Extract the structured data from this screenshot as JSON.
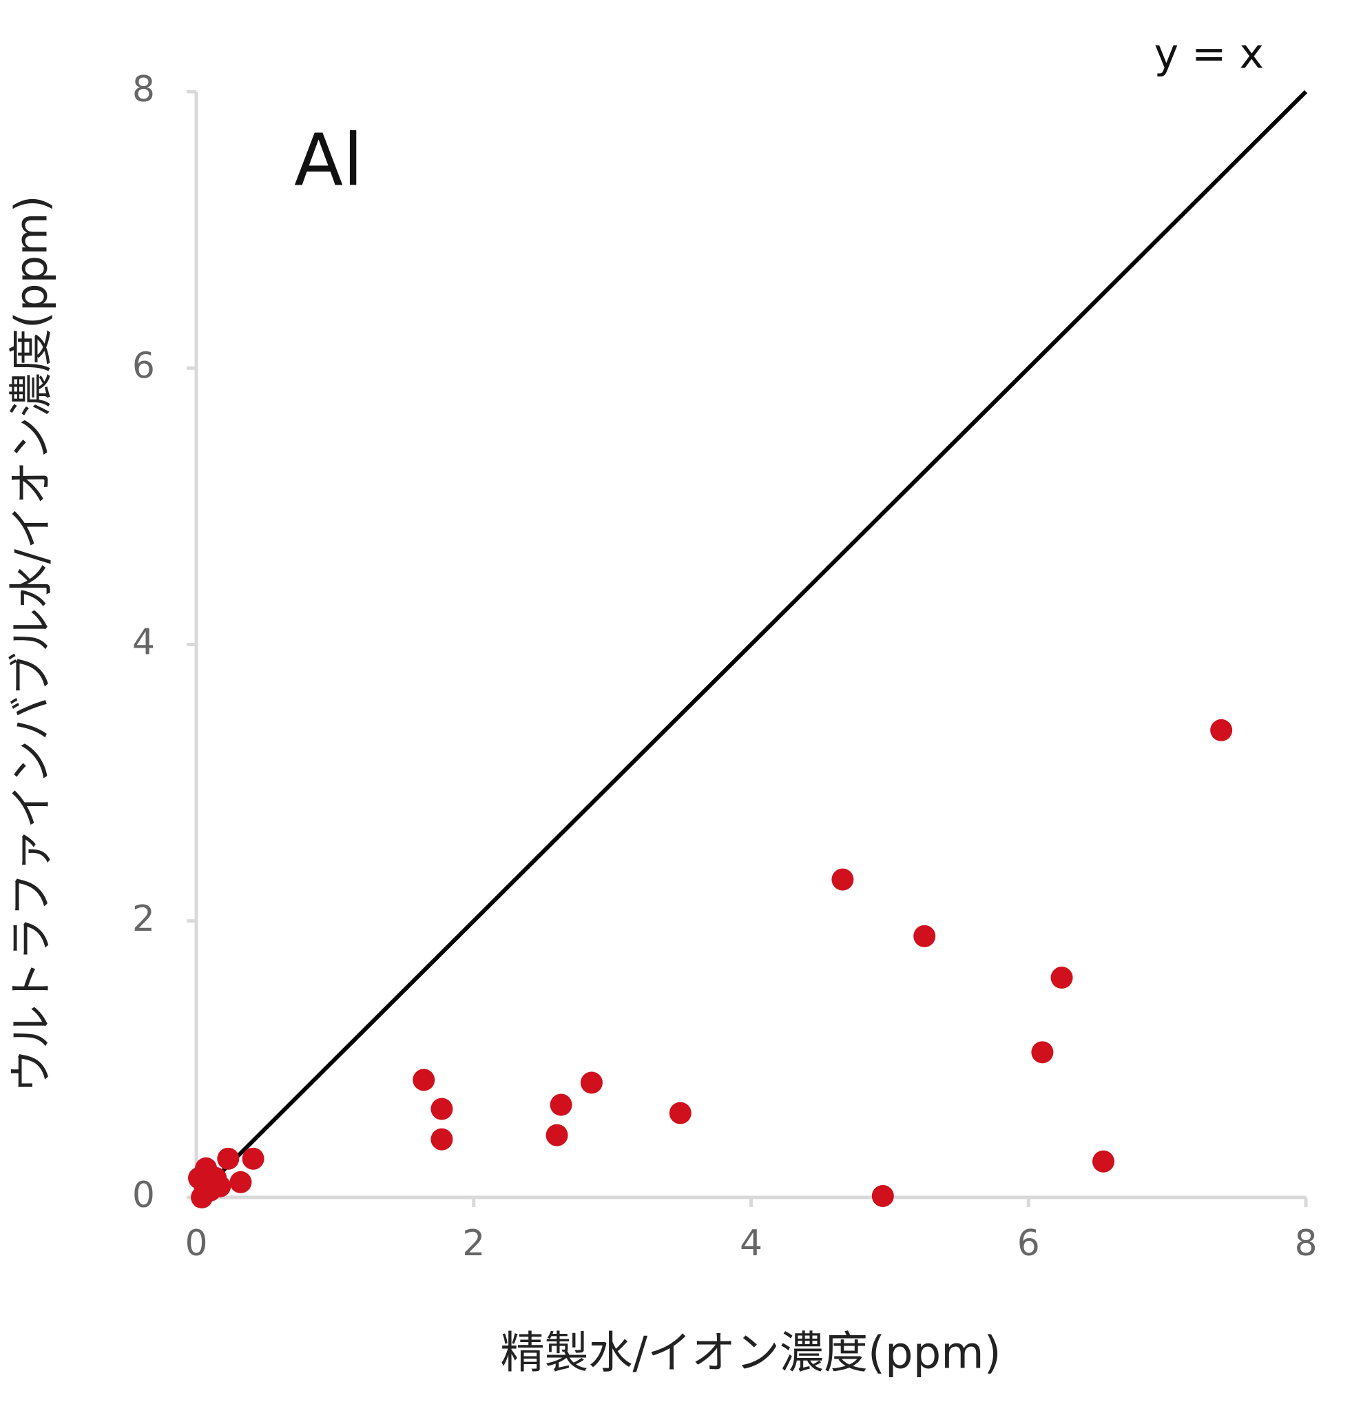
{
  "chart_data": {
    "type": "scatter",
    "annotation": "Al",
    "x_label": "精製水/イオン濃度(ppm)",
    "y_label": "ウルトラファインバブル水/イオン濃度(ppm)",
    "xlim": [
      0,
      8
    ],
    "ylim": [
      0,
      8
    ],
    "xticks": [
      0,
      2,
      4,
      6,
      8
    ],
    "yticks": [
      0,
      2,
      4,
      6,
      8
    ],
    "grid": false,
    "reference_line": {
      "label": "y = x",
      "color": "#000000",
      "x": [
        0,
        8
      ],
      "y": [
        0,
        8
      ]
    },
    "series": [
      {
        "color": "#d0101c",
        "x": [
          7.39,
          4.66,
          5.25,
          6.24,
          6.1,
          6.54,
          4.95,
          1.64,
          1.77,
          1.77,
          2.63,
          2.6,
          2.85,
          3.49,
          0.41,
          0.23,
          0.32,
          0.14,
          0.07,
          0.02,
          0.04,
          0.1,
          0.17,
          0.06
        ],
        "values": [
          3.38,
          2.3,
          1.89,
          1.59,
          1.05,
          0.26,
          0.01,
          0.85,
          0.64,
          0.42,
          0.67,
          0.45,
          0.83,
          0.61,
          0.28,
          0.28,
          0.11,
          0.14,
          0.21,
          0.14,
          0.0,
          0.05,
          0.08,
          0.08
        ]
      }
    ]
  }
}
